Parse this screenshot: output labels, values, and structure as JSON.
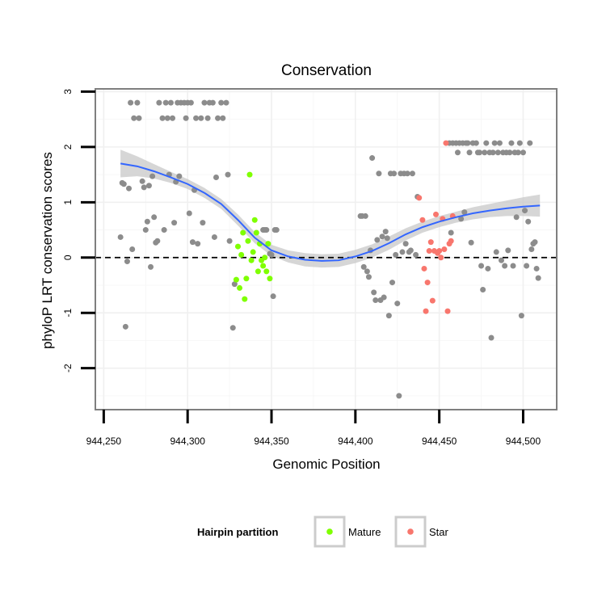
{
  "chart_data": {
    "type": "scatter",
    "title": "Conservation",
    "xlabel": "Genomic Position",
    "ylabel": "phyloP LRT conservation scores",
    "xlim": [
      944245,
      944520
    ],
    "ylim": [
      -2.75,
      3.05
    ],
    "x_ticks": [
      944250,
      944300,
      944350,
      944400,
      944450,
      944500
    ],
    "x_tick_labels": [
      "944,250",
      "944,300",
      "944,350",
      "944,400",
      "944,450",
      "944,500"
    ],
    "y_ticks": [
      -2,
      -1,
      0,
      1,
      2,
      3
    ],
    "y_tick_labels": [
      "-2",
      "-1",
      "0",
      "1",
      "2",
      "3"
    ],
    "reference_line": {
      "y": 0,
      "style": "dashed"
    },
    "grid": true,
    "legend": {
      "title": "Hairpin partition",
      "position": "bottom",
      "entries": [
        {
          "label": "Mature",
          "color": "#7fff00"
        },
        {
          "label": "Star",
          "color": "#f8766d"
        }
      ]
    },
    "colors": {
      "other": "#8c8c8c",
      "Mature": "#7fff00",
      "Star": "#f8766d",
      "smooth": "#3366ff",
      "band": "#c8c8c8"
    },
    "series": [
      {
        "name": "Other",
        "color": "#8c8c8c",
        "points": [
          [
            944260,
            0.37
          ],
          [
            944261,
            1.35
          ],
          [
            944262,
            1.33
          ],
          [
            944263,
            -1.25
          ],
          [
            944264,
            -0.07
          ],
          [
            944265,
            1.25
          ],
          [
            944266,
            2.8
          ],
          [
            944267,
            0.15
          ],
          [
            944268,
            2.52
          ],
          [
            944270,
            2.8
          ],
          [
            944271,
            2.52
          ],
          [
            944273,
            1.38
          ],
          [
            944274,
            1.27
          ],
          [
            944275,
            0.5
          ],
          [
            944276,
            0.65
          ],
          [
            944277,
            1.3
          ],
          [
            944278,
            -0.17
          ],
          [
            944279,
            1.47
          ],
          [
            944280,
            0.73
          ],
          [
            944281,
            0.27
          ],
          [
            944282,
            0.3
          ],
          [
            944283,
            2.8
          ],
          [
            944285,
            2.52
          ],
          [
            944286,
            0.5
          ],
          [
            944287,
            2.8
          ],
          [
            944288,
            2.52
          ],
          [
            944289,
            1.5
          ],
          [
            944290,
            2.8
          ],
          [
            944291,
            2.52
          ],
          [
            944292,
            0.63
          ],
          [
            944293,
            1.37
          ],
          [
            944294,
            2.8
          ],
          [
            944295,
            1.47
          ],
          [
            944296,
            2.8
          ],
          [
            944298,
            2.8
          ],
          [
            944299,
            2.52
          ],
          [
            944300,
            2.8
          ],
          [
            944301,
            0.8
          ],
          [
            944302,
            2.8
          ],
          [
            944303,
            0.28
          ],
          [
            944304,
            1.22
          ],
          [
            944305,
            2.52
          ],
          [
            944306,
            0.25
          ],
          [
            944308,
            2.52
          ],
          [
            944309,
            0.63
          ],
          [
            944310,
            2.8
          ],
          [
            944312,
            2.52
          ],
          [
            944313,
            2.8
          ],
          [
            944315,
            2.8
          ],
          [
            944316,
            0.37
          ],
          [
            944317,
            1.45
          ],
          [
            944318,
            2.52
          ],
          [
            944320,
            2.8
          ],
          [
            944321,
            2.52
          ],
          [
            944323,
            2.8
          ],
          [
            944324,
            1.5
          ],
          [
            944325,
            0.3
          ],
          [
            944327,
            -1.27
          ],
          [
            944328,
            -0.48
          ],
          [
            944345,
            0.5
          ],
          [
            944346,
            0.5
          ],
          [
            944347,
            0.5
          ],
          [
            944349,
            0.07
          ],
          [
            944350,
            0.05
          ],
          [
            944351,
            -0.7
          ],
          [
            944352,
            0.5
          ],
          [
            944353,
            0.5
          ],
          [
            944403,
            0.75
          ],
          [
            944404,
            0.75
          ],
          [
            944405,
            -0.17
          ],
          [
            944406,
            0.75
          ],
          [
            944407,
            -0.25
          ],
          [
            944408,
            -0.35
          ],
          [
            944409,
            0.13
          ],
          [
            944410,
            1.8
          ],
          [
            944411,
            -0.63
          ],
          [
            944412,
            -0.77
          ],
          [
            944413,
            0.32
          ],
          [
            944414,
            1.52
          ],
          [
            944415,
            -0.77
          ],
          [
            944416,
            0.38
          ],
          [
            944417,
            -0.72
          ],
          [
            944418,
            0.47
          ],
          [
            944419,
            0.35
          ],
          [
            944420,
            -1.05
          ],
          [
            944421,
            1.52
          ],
          [
            944422,
            -0.45
          ],
          [
            944423,
            1.52
          ],
          [
            944424,
            0.05
          ],
          [
            944425,
            -0.83
          ],
          [
            944426,
            -2.5
          ],
          [
            944427,
            1.52
          ],
          [
            944428,
            0.1
          ],
          [
            944429,
            1.52
          ],
          [
            944430,
            0.25
          ],
          [
            944431,
            1.52
          ],
          [
            944432,
            0.1
          ],
          [
            944433,
            0.13
          ],
          [
            944434,
            1.52
          ],
          [
            944436,
            0.05
          ],
          [
            944437,
            1.1
          ],
          [
            944456,
            2.07
          ],
          [
            944457,
            0.45
          ],
          [
            944458,
            2.07
          ],
          [
            944460,
            2.07
          ],
          [
            944461,
            1.9
          ],
          [
            944462,
            2.07
          ],
          [
            944463,
            0.7
          ],
          [
            944464,
            2.07
          ],
          [
            944465,
            0.82
          ],
          [
            944466,
            2.07
          ],
          [
            944467,
            2.07
          ],
          [
            944468,
            1.9
          ],
          [
            944469,
            0.27
          ],
          [
            944470,
            2.07
          ],
          [
            944472,
            2.07
          ],
          [
            944473,
            1.9
          ],
          [
            944474,
            1.9
          ],
          [
            944475,
            -0.15
          ],
          [
            944476,
            -0.58
          ],
          [
            944477,
            1.9
          ],
          [
            944478,
            2.07
          ],
          [
            944479,
            -0.2
          ],
          [
            944480,
            1.9
          ],
          [
            944481,
            -1.45
          ],
          [
            944482,
            1.9
          ],
          [
            944483,
            2.07
          ],
          [
            944484,
            0.1
          ],
          [
            944485,
            1.9
          ],
          [
            944486,
            2.07
          ],
          [
            944487,
            -0.05
          ],
          [
            944488,
            1.9
          ],
          [
            944489,
            -0.15
          ],
          [
            944490,
            1.9
          ],
          [
            944491,
            0.13
          ],
          [
            944492,
            1.9
          ],
          [
            944493,
            2.07
          ],
          [
            944494,
            -0.15
          ],
          [
            944495,
            1.9
          ],
          [
            944496,
            0.73
          ],
          [
            944497,
            1.9
          ],
          [
            944498,
            2.07
          ],
          [
            944499,
            -1.05
          ],
          [
            944500,
            1.9
          ],
          [
            944501,
            0.85
          ],
          [
            944502,
            -0.15
          ],
          [
            944503,
            0.65
          ],
          [
            944504,
            2.07
          ],
          [
            944505,
            0.15
          ],
          [
            944506,
            0.25
          ],
          [
            944507,
            0.28
          ],
          [
            944508,
            -0.2
          ],
          [
            944509,
            -0.37
          ]
        ]
      },
      {
        "name": "Mature",
        "color": "#7fff00",
        "points": [
          [
            944329,
            -0.4
          ],
          [
            944330,
            0.2
          ],
          [
            944331,
            -0.55
          ],
          [
            944332,
            0.05
          ],
          [
            944333,
            0.45
          ],
          [
            944334,
            -0.75
          ],
          [
            944335,
            -0.38
          ],
          [
            944336,
            0.3
          ],
          [
            944337,
            1.5
          ],
          [
            944338,
            -0.05
          ],
          [
            944339,
            0.1
          ],
          [
            944340,
            0.68
          ],
          [
            944341,
            0.45
          ],
          [
            944342,
            -0.25
          ],
          [
            944343,
            0.25
          ],
          [
            944344,
            -0.05
          ],
          [
            944345,
            -0.15
          ],
          [
            944346,
            0.0
          ],
          [
            944347,
            -0.25
          ],
          [
            944348,
            0.25
          ],
          [
            944349,
            -0.38
          ]
        ]
      },
      {
        "name": "Star",
        "color": "#f8766d",
        "points": [
          [
            944438,
            1.08
          ],
          [
            944440,
            0.68
          ],
          [
            944441,
            -0.2
          ],
          [
            944442,
            -0.97
          ],
          [
            944443,
            -0.45
          ],
          [
            944444,
            0.12
          ],
          [
            944445,
            0.28
          ],
          [
            944446,
            -0.78
          ],
          [
            944447,
            0.12
          ],
          [
            944448,
            0.78
          ],
          [
            944449,
            0.08
          ],
          [
            944450,
            0.12
          ],
          [
            944451,
            0.0
          ],
          [
            944452,
            0.7
          ],
          [
            944453,
            0.15
          ],
          [
            944454,
            2.07
          ],
          [
            944455,
            -0.97
          ],
          [
            944456,
            0.25
          ],
          [
            944457,
            0.3
          ],
          [
            944458,
            0.75
          ]
        ]
      }
    ],
    "smooth": {
      "x": [
        944260,
        944270,
        944280,
        944290,
        944300,
        944310,
        944320,
        944330,
        944340,
        944350,
        944360,
        944370,
        944380,
        944390,
        944400,
        944410,
        944420,
        944430,
        944440,
        944450,
        944460,
        944470,
        944480,
        944490,
        944500,
        944510
      ],
      "fit": [
        1.7,
        1.65,
        1.56,
        1.45,
        1.33,
        1.17,
        0.97,
        0.68,
        0.36,
        0.13,
        0.02,
        -0.04,
        -0.06,
        -0.05,
        0.02,
        0.12,
        0.26,
        0.42,
        0.55,
        0.65,
        0.73,
        0.8,
        0.85,
        0.89,
        0.92,
        0.94
      ],
      "se": [
        0.25,
        0.18,
        0.13,
        0.1,
        0.09,
        0.09,
        0.09,
        0.1,
        0.1,
        0.1,
        0.11,
        0.12,
        0.12,
        0.12,
        0.12,
        0.12,
        0.12,
        0.11,
        0.1,
        0.1,
        0.1,
        0.11,
        0.12,
        0.14,
        0.17,
        0.2
      ]
    }
  }
}
